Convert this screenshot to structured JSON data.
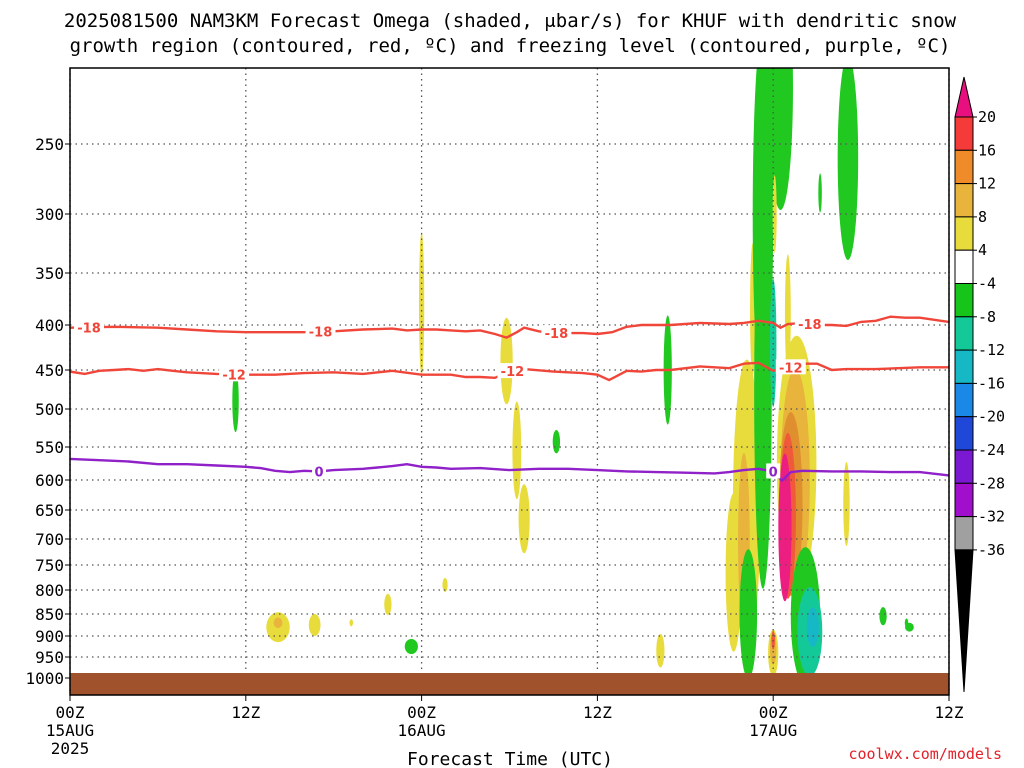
{
  "chart_data": {
    "type": "heatmap",
    "title_line1": "2025081500 NAM3KM Forecast Omega (shaded, μbar/s) for KHUF with dendritic snow",
    "title_line2": "growth region (contoured, red, ºC) and freezing level (contoured, purple, ºC)",
    "xlabel": "Forecast Time (UTC)",
    "credit": "coolwx.com/models",
    "x_range_hours": [
      0,
      60
    ],
    "y_range_hpa": [
      200,
      1050
    ],
    "x_ticks": [
      {
        "hour": 0,
        "top": "00Z",
        "mid": "15AUG",
        "bot": "2025"
      },
      {
        "hour": 12,
        "top": "12Z",
        "mid": "",
        "bot": ""
      },
      {
        "hour": 24,
        "top": "00Z",
        "mid": "16AUG",
        "bot": ""
      },
      {
        "hour": 36,
        "top": "12Z",
        "mid": "",
        "bot": ""
      },
      {
        "hour": 48,
        "top": "00Z",
        "mid": "17AUG",
        "bot": ""
      },
      {
        "hour": 60,
        "top": "12Z",
        "mid": "",
        "bot": ""
      }
    ],
    "y_ticks": [
      {
        "hpa": 250,
        "label": "250"
      },
      {
        "hpa": 300,
        "label": "300"
      },
      {
        "hpa": 350,
        "label": "350"
      },
      {
        "hpa": 400,
        "label": "400"
      },
      {
        "hpa": 450,
        "label": "450"
      },
      {
        "hpa": 500,
        "label": "500"
      },
      {
        "hpa": 550,
        "label": "550"
      },
      {
        "hpa": 600,
        "label": "600"
      },
      {
        "hpa": 650,
        "label": "650"
      },
      {
        "hpa": 700,
        "label": "700"
      },
      {
        "hpa": 750,
        "label": "750"
      },
      {
        "hpa": 800,
        "label": "800"
      },
      {
        "hpa": 850,
        "label": "850"
      },
      {
        "hpa": 900,
        "label": "900"
      },
      {
        "hpa": 950,
        "label": "950"
      },
      {
        "hpa": 1000,
        "label": "1000"
      }
    ],
    "grid": true,
    "colorbar": {
      "labels": [
        "20",
        "16",
        "12",
        "8",
        "4",
        "-4",
        "-8",
        "-12",
        "-16",
        "-20",
        "-24",
        "-28",
        "-32",
        "-36"
      ],
      "top_color": "#e8107e",
      "bottom_color": "#000000",
      "band_colors": [
        "#f53a3a",
        "#f08b2a",
        "#e8b43c",
        "#e8dc3c",
        "#ffffff",
        "#16c41a",
        "#14c998",
        "#16b8c6",
        "#1a88e6",
        "#1f48d8",
        "#7a18d2",
        "#a20fcc",
        "#a0a0a0"
      ]
    },
    "colors": {
      "pos4": "#e8dc3c",
      "pos8": "#e8b43c",
      "pos12": "#e08f2e",
      "pos16": "#f05a3a",
      "pos20": "#ec1e82",
      "neg4": "#20c820",
      "neg8": "#14c998",
      "neg12": "#16b8c6",
      "neg16": "#1a88e6",
      "dgz": "#f0463a",
      "freezing": "#9020c8",
      "ground": "#a0522d"
    },
    "contours": {
      "dgz_18": {
        "label": "-18",
        "label_at_hours": [
          1.3,
          17.1,
          33.2,
          50.5
        ],
        "points": [
          [
            0,
            403
          ],
          [
            3,
            402
          ],
          [
            6,
            403
          ],
          [
            8,
            405
          ],
          [
            10,
            407
          ],
          [
            12,
            408
          ],
          [
            14,
            408
          ],
          [
            16,
            408
          ],
          [
            18,
            407
          ],
          [
            20,
            405
          ],
          [
            22,
            404
          ],
          [
            23,
            406
          ],
          [
            24,
            405
          ],
          [
            25,
            405
          ],
          [
            26,
            406
          ],
          [
            27,
            407
          ],
          [
            28,
            406
          ],
          [
            29,
            410
          ],
          [
            29.8,
            414
          ],
          [
            30.5,
            408
          ],
          [
            31,
            403
          ],
          [
            32,
            407
          ],
          [
            33,
            409
          ],
          [
            35,
            409
          ],
          [
            36,
            410
          ],
          [
            37,
            408
          ],
          [
            38,
            402
          ],
          [
            39,
            400
          ],
          [
            41,
            400
          ],
          [
            43,
            398
          ],
          [
            45,
            399
          ],
          [
            46,
            398
          ],
          [
            47,
            396
          ],
          [
            48,
            398
          ],
          [
            48.5,
            403
          ],
          [
            49,
            399
          ],
          [
            50,
            398
          ],
          [
            51,
            400
          ],
          [
            52,
            400
          ],
          [
            53,
            401
          ],
          [
            54,
            397
          ],
          [
            55,
            396
          ],
          [
            56,
            392
          ],
          [
            57,
            393
          ],
          [
            58,
            393
          ],
          [
            59,
            395
          ],
          [
            60,
            397
          ]
        ]
      },
      "dgz_12": {
        "label": "-12",
        "label_at_hours": [
          11.2,
          30.2,
          49.2
        ],
        "points": [
          [
            0,
            452
          ],
          [
            1,
            455
          ],
          [
            2,
            451
          ],
          [
            3,
            450
          ],
          [
            4,
            449
          ],
          [
            5,
            451
          ],
          [
            6,
            449
          ],
          [
            7,
            451
          ],
          [
            8,
            453
          ],
          [
            10,
            455
          ],
          [
            12,
            456
          ],
          [
            14,
            456
          ],
          [
            16,
            454
          ],
          [
            18,
            453
          ],
          [
            20,
            455
          ],
          [
            22,
            451
          ],
          [
            24,
            456
          ],
          [
            26,
            456
          ],
          [
            27,
            459
          ],
          [
            28,
            459
          ],
          [
            29,
            460
          ],
          [
            30,
            452
          ],
          [
            31,
            449
          ],
          [
            33,
            452
          ],
          [
            35,
            454
          ],
          [
            36,
            456
          ],
          [
            36.8,
            463
          ],
          [
            37.5,
            456
          ],
          [
            38,
            451
          ],
          [
            39,
            452
          ],
          [
            40,
            450
          ],
          [
            41,
            450
          ],
          [
            43,
            446
          ],
          [
            45,
            448
          ],
          [
            46,
            443
          ],
          [
            47,
            442
          ],
          [
            48,
            451
          ],
          [
            49,
            448
          ],
          [
            50,
            443
          ],
          [
            51,
            443
          ],
          [
            52,
            450
          ],
          [
            53,
            449
          ],
          [
            55,
            449
          ],
          [
            58,
            447
          ],
          [
            60,
            447
          ]
        ]
      },
      "freezing_0": {
        "label": "0",
        "label_at_hours": [
          17.0,
          48.0
        ],
        "points": [
          [
            0,
            568
          ],
          [
            2,
            570
          ],
          [
            4,
            572
          ],
          [
            6,
            576
          ],
          [
            8,
            576
          ],
          [
            10,
            578
          ],
          [
            12,
            580
          ],
          [
            13,
            582
          ],
          [
            14,
            586
          ],
          [
            15,
            588
          ],
          [
            16,
            586
          ],
          [
            17,
            587
          ],
          [
            18,
            585
          ],
          [
            20,
            583
          ],
          [
            21,
            581
          ],
          [
            22,
            579
          ],
          [
            23,
            576
          ],
          [
            24,
            580
          ],
          [
            25,
            581
          ],
          [
            26,
            583
          ],
          [
            28,
            582
          ],
          [
            30,
            585
          ],
          [
            32,
            583
          ],
          [
            34,
            583
          ],
          [
            36,
            585
          ],
          [
            38,
            587
          ],
          [
            40,
            588
          ],
          [
            42,
            589
          ],
          [
            44,
            590
          ],
          [
            45,
            588
          ],
          [
            46,
            585
          ],
          [
            47,
            583
          ],
          [
            48,
            587
          ],
          [
            48.6,
            601
          ],
          [
            49.2,
            588
          ],
          [
            50,
            586
          ],
          [
            52,
            587
          ],
          [
            54,
            587
          ],
          [
            56,
            588
          ],
          [
            58,
            588
          ],
          [
            60,
            593
          ]
        ]
      }
    },
    "omega_blobs": [
      {
        "band": "neg4",
        "h": 11.3,
        "p": 490,
        "rx": 0.22,
        "ry": 40
      },
      {
        "band": "pos4",
        "h": 14.2,
        "p": 880,
        "rx": 0.8,
        "ry": 34
      },
      {
        "band": "pos8",
        "h": 14.2,
        "p": 870,
        "rx": 0.3,
        "ry": 12
      },
      {
        "band": "pos4",
        "h": 16.7,
        "p": 875,
        "rx": 0.4,
        "ry": 25
      },
      {
        "band": "pos4",
        "h": 19.2,
        "p": 870,
        "rx": 0.12,
        "ry": 8
      },
      {
        "band": "pos4",
        "h": 21.7,
        "p": 830,
        "rx": 0.25,
        "ry": 22
      },
      {
        "band": "pos4",
        "h": 24.0,
        "p": 380,
        "rx": 0.18,
        "ry": 70
      },
      {
        "band": "pos4",
        "h": 25.6,
        "p": 790,
        "rx": 0.18,
        "ry": 14
      },
      {
        "band": "neg4",
        "h": 23.3,
        "p": 925,
        "rx": 0.45,
        "ry": 18
      },
      {
        "band": "pos4",
        "h": 29.8,
        "p": 440,
        "rx": 0.42,
        "ry": 50
      },
      {
        "band": "pos4",
        "h": 30.5,
        "p": 555,
        "rx": 0.3,
        "ry": 70
      },
      {
        "band": "pos4",
        "h": 31.0,
        "p": 665,
        "rx": 0.38,
        "ry": 60
      },
      {
        "band": "neg4",
        "h": 33.2,
        "p": 543,
        "rx": 0.25,
        "ry": 16
      },
      {
        "band": "neg4",
        "h": 40.8,
        "p": 450,
        "rx": 0.28,
        "ry": 64
      },
      {
        "band": "pos4",
        "h": 40.3,
        "p": 935,
        "rx": 0.28,
        "ry": 40
      },
      {
        "band": "pos4",
        "h": 45.0,
        "p": 710,
        "rx": 0.16,
        "ry": 32
      },
      {
        "band": "pos4",
        "h": 45.3,
        "p": 765,
        "rx": 0.55,
        "ry": 155
      },
      {
        "band": "pos4",
        "h": 46.2,
        "p": 640,
        "rx": 0.95,
        "ry": 230
      },
      {
        "band": "pos8",
        "h": 46.0,
        "p": 705,
        "rx": 0.4,
        "ry": 160
      },
      {
        "band": "pos4",
        "h": 46.6,
        "p": 385,
        "rx": 0.18,
        "ry": 65
      },
      {
        "band": "neg4",
        "h": 47.3,
        "p": 300,
        "rx": 0.7,
        "ry": 160
      },
      {
        "band": "neg4",
        "h": 47.3,
        "p": 480,
        "rx": 0.6,
        "ry": 225
      },
      {
        "band": "neg4",
        "h": 46.3,
        "p": 850,
        "rx": 0.6,
        "ry": 140
      },
      {
        "band": "neg8",
        "h": 48.0,
        "p": 420,
        "rx": 0.22,
        "ry": 70
      },
      {
        "band": "pos4",
        "h": 48.0,
        "p": 940,
        "rx": 0.35,
        "ry": 55
      },
      {
        "band": "pos8",
        "h": 48.0,
        "p": 930,
        "rx": 0.22,
        "ry": 38
      },
      {
        "band": "pos16",
        "h": 48.0,
        "p": 910,
        "rx": 0.12,
        "ry": 22
      },
      {
        "band": "neg4",
        "h": 48.5,
        "p": 205,
        "rx": 0.85,
        "ry": 95
      },
      {
        "band": "pos4",
        "h": 48.1,
        "p": 300,
        "rx": 0.14,
        "ry": 30
      },
      {
        "band": "pos4",
        "h": 49.0,
        "p": 390,
        "rx": 0.2,
        "ry": 60
      },
      {
        "band": "pos4",
        "h": 49.6,
        "p": 575,
        "rx": 1.35,
        "ry": 185
      },
      {
        "band": "pos8",
        "h": 49.5,
        "p": 600,
        "rx": 1.0,
        "ry": 170
      },
      {
        "band": "pos12",
        "h": 49.2,
        "p": 640,
        "rx": 0.8,
        "ry": 150
      },
      {
        "band": "pos16",
        "h": 49.0,
        "p": 660,
        "rx": 0.55,
        "ry": 140
      },
      {
        "band": "pos20",
        "h": 48.8,
        "p": 680,
        "rx": 0.45,
        "ry": 130
      },
      {
        "band": "neg4",
        "h": 50.2,
        "p": 855,
        "rx": 1.0,
        "ry": 150
      },
      {
        "band": "neg8",
        "h": 50.5,
        "p": 890,
        "rx": 0.85,
        "ry": 100
      },
      {
        "band": "neg12",
        "h": 50.7,
        "p": 880,
        "rx": 0.42,
        "ry": 45
      },
      {
        "band": "neg4",
        "h": 51.2,
        "p": 285,
        "rx": 0.12,
        "ry": 14
      },
      {
        "band": "neg4",
        "h": 53.1,
        "p": 260,
        "rx": 0.7,
        "ry": 80
      },
      {
        "band": "neg4",
        "h": 53.2,
        "p": 240,
        "rx": 0.25,
        "ry": 60
      },
      {
        "band": "pos4",
        "h": 53.0,
        "p": 640,
        "rx": 0.22,
        "ry": 70
      },
      {
        "band": "neg4",
        "h": 55.5,
        "p": 855,
        "rx": 0.25,
        "ry": 20
      },
      {
        "band": "neg4",
        "h": 57.3,
        "p": 880,
        "rx": 0.3,
        "ry": 10
      },
      {
        "band": "neg4",
        "h": 57.1,
        "p": 870,
        "rx": 0.12,
        "ry": 10
      }
    ]
  }
}
